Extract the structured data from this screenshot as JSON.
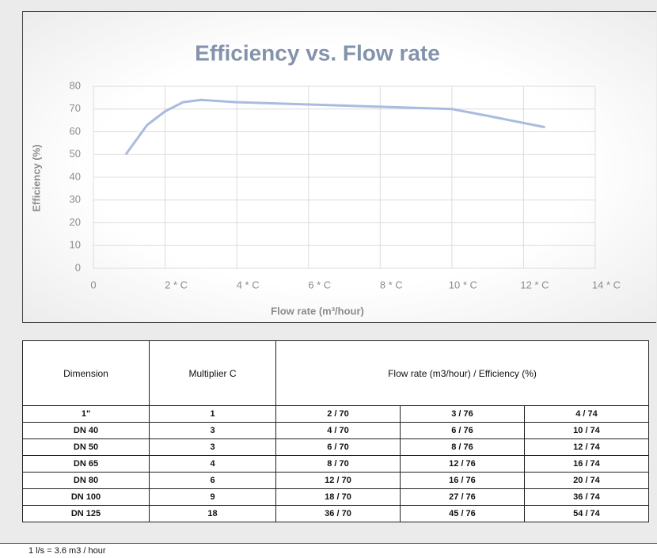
{
  "chart_data": {
    "type": "line",
    "title": "Efficiency vs. Flow rate",
    "x_label": "Flow rate (m³/hour)",
    "y_label": "Efficiency (%)",
    "x": [
      0.9,
      1.5,
      2,
      2.5,
      3,
      4,
      6,
      8,
      10,
      11,
      12.6
    ],
    "values": [
      50,
      63,
      69,
      73,
      74,
      73,
      72,
      71,
      70,
      67,
      62
    ],
    "color": "#a9bce0",
    "xlim": [
      0,
      14
    ],
    "ylim": [
      0,
      80
    ],
    "xticks": [
      0,
      {
        "value": 2,
        "label": "2 * C"
      },
      {
        "value": 4,
        "label": "4 * C"
      },
      {
        "value": 6,
        "label": "6 * C"
      },
      {
        "value": 8,
        "label": "8 * C"
      },
      {
        "value": 10,
        "label": "10 * C"
      },
      {
        "value": 12,
        "label": "12 * C"
      },
      {
        "value": 14,
        "label": "14 * C"
      }
    ],
    "yticks": [
      0,
      10,
      20,
      30,
      40,
      50,
      60,
      70,
      80
    ],
    "grid": true
  },
  "table": {
    "headers": [
      "Dimension",
      "Multiplier C",
      "Flow rate (m3/hour) / Efficiency (%)"
    ],
    "rows": [
      [
        "1\"",
        "1",
        "2 / 70",
        "3 / 76",
        "4 / 74"
      ],
      [
        "DN 40",
        "3",
        "4 / 70",
        "6 / 76",
        "10 / 74"
      ],
      [
        "DN 50",
        "3",
        "6 / 70",
        "8 / 76",
        "12 / 74"
      ],
      [
        "DN 65",
        "4",
        "8 / 70",
        "12 / 76",
        "16 / 74"
      ],
      [
        "DN 80",
        "6",
        "12 / 70",
        "16 / 76",
        "20 / 74"
      ],
      [
        "DN 100",
        "9",
        "18 / 70",
        "27 / 76",
        "36 / 74"
      ],
      [
        "DN 125",
        "18",
        "36 / 70",
        "45 / 76",
        "54 / 74"
      ]
    ]
  },
  "note": "1 l/s = 3.6 m3 / hour"
}
